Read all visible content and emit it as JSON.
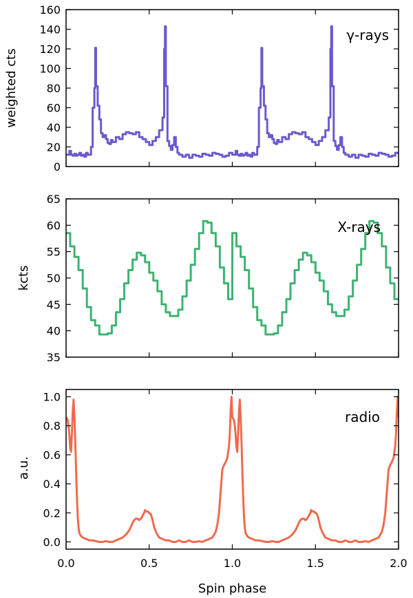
{
  "chart_data": [
    {
      "type": "line",
      "step": true,
      "panel_label": "γ-rays",
      "ylabel": "weighted cts",
      "xlabel": "",
      "ylim": [
        0,
        160
      ],
      "xlim": [
        0,
        2
      ],
      "yticks": [
        "0",
        "20",
        "40",
        "60",
        "80",
        "100",
        "120",
        "140",
        "160"
      ],
      "color": "#6a5acd",
      "series": [
        {
          "x": [
            0.0,
            0.02,
            0.03,
            0.04,
            0.05,
            0.06,
            0.07,
            0.08,
            0.09,
            0.1,
            0.11,
            0.12,
            0.13,
            0.14,
            0.15,
            0.16,
            0.17,
            0.175,
            0.18,
            0.19,
            0.2,
            0.21,
            0.22,
            0.23,
            0.24,
            0.25,
            0.26,
            0.27,
            0.28,
            0.3,
            0.32,
            0.34,
            0.36,
            0.38,
            0.4,
            0.42,
            0.44,
            0.46,
            0.48,
            0.5,
            0.52,
            0.54,
            0.56,
            0.58,
            0.59,
            0.595,
            0.6,
            0.61,
            0.62,
            0.63,
            0.64,
            0.65,
            0.66,
            0.67,
            0.68,
            0.7,
            0.72,
            0.74,
            0.76,
            0.78,
            0.8,
            0.82,
            0.84,
            0.86,
            0.88,
            0.9,
            0.92,
            0.94,
            0.96,
            0.98
          ],
          "y": [
            12,
            16,
            12,
            11,
            13,
            11,
            12,
            14,
            11,
            12,
            10,
            14,
            12,
            12,
            20,
            60,
            80,
            121,
            82,
            62,
            48,
            34,
            30,
            32,
            28,
            24,
            23,
            27,
            25,
            30,
            28,
            33,
            35,
            34,
            33,
            35,
            30,
            28,
            25,
            22,
            26,
            30,
            37,
            50,
            120,
            143,
            82,
            26,
            21,
            17,
            22,
            30,
            20,
            14,
            12,
            10,
            12,
            9,
            12,
            11,
            10,
            13,
            12,
            11,
            14,
            13,
            12,
            10,
            11,
            14
          ]
        }
      ]
    },
    {
      "type": "line",
      "step": true,
      "panel_label": "X-rays",
      "ylabel": "kcts",
      "xlabel": "",
      "ylim": [
        35,
        65
      ],
      "xlim": [
        0,
        2
      ],
      "yticks": [
        "35",
        "40",
        "45",
        "50",
        "55",
        "60",
        "65"
      ],
      "color": "#3cb371",
      "series": [
        {
          "x": [
            0.0,
            0.025,
            0.05,
            0.075,
            0.1,
            0.125,
            0.15,
            0.175,
            0.2,
            0.225,
            0.25,
            0.275,
            0.3,
            0.325,
            0.35,
            0.375,
            0.4,
            0.425,
            0.45,
            0.475,
            0.5,
            0.525,
            0.55,
            0.575,
            0.6,
            0.625,
            0.65,
            0.675,
            0.7,
            0.725,
            0.75,
            0.775,
            0.8,
            0.825,
            0.85,
            0.875,
            0.9,
            0.925,
            0.95,
            0.975
          ],
          "y": [
            58.5,
            56,
            54,
            51.5,
            48,
            44.5,
            42,
            41,
            39.3,
            39.3,
            39.5,
            41,
            43.5,
            46,
            49,
            51.5,
            53.5,
            54.8,
            54.3,
            53,
            51,
            49.5,
            47.5,
            45,
            43.5,
            42.8,
            42.8,
            44,
            46.5,
            49.5,
            52.5,
            55.5,
            58.5,
            60.8,
            60.5,
            58.5,
            56,
            52,
            49,
            46
          ]
        }
      ]
    },
    {
      "type": "line",
      "step": false,
      "panel_label": "radio",
      "ylabel": "a.u.",
      "xlabel": "Spin phase",
      "ylim": [
        -0.05,
        1.05
      ],
      "xlim": [
        0,
        2
      ],
      "yticks": [
        "0.0",
        "0.2",
        "0.4",
        "0.6",
        "0.8",
        "1.0"
      ],
      "xticks": [
        "0.0",
        "0.5",
        "1.0",
        "1.5",
        "2.0"
      ],
      "color": "#f0694d",
      "series": [
        {
          "x": [
            0.0,
            0.005,
            0.01,
            0.015,
            0.02,
            0.025,
            0.03,
            0.035,
            0.04,
            0.045,
            0.05,
            0.055,
            0.06,
            0.065,
            0.07,
            0.075,
            0.08,
            0.09,
            0.1,
            0.12,
            0.14,
            0.16,
            0.18,
            0.2,
            0.22,
            0.24,
            0.26,
            0.28,
            0.3,
            0.32,
            0.34,
            0.36,
            0.38,
            0.4,
            0.41,
            0.42,
            0.43,
            0.44,
            0.45,
            0.46,
            0.47,
            0.475,
            0.48,
            0.49,
            0.5,
            0.51,
            0.52,
            0.53,
            0.54,
            0.56,
            0.58,
            0.6,
            0.62,
            0.64,
            0.66,
            0.68,
            0.7,
            0.72,
            0.74,
            0.76,
            0.78,
            0.8,
            0.82,
            0.84,
            0.86,
            0.88,
            0.9,
            0.91,
            0.92,
            0.93,
            0.94,
            0.95,
            0.96,
            0.97,
            0.975,
            0.98,
            0.985,
            0.99,
            0.995
          ],
          "y": [
            0.86,
            0.85,
            0.84,
            0.8,
            0.74,
            0.65,
            0.62,
            0.75,
            0.9,
            0.98,
            0.86,
            0.7,
            0.5,
            0.32,
            0.18,
            0.1,
            0.06,
            0.04,
            0.03,
            0.02,
            0.01,
            0.01,
            0.005,
            0.0,
            0.0,
            0.005,
            0.0,
            0.0,
            0.01,
            0.02,
            0.03,
            0.05,
            0.08,
            0.13,
            0.15,
            0.16,
            0.16,
            0.15,
            0.16,
            0.18,
            0.2,
            0.22,
            0.21,
            0.21,
            0.2,
            0.19,
            0.15,
            0.1,
            0.07,
            0.03,
            0.02,
            0.01,
            0.01,
            0.0,
            0.0,
            0.01,
            0.0,
            0.0,
            0.01,
            0.0,
            0.0,
            0.005,
            0.0,
            0.01,
            0.02,
            0.03,
            0.07,
            0.12,
            0.2,
            0.35,
            0.5,
            0.53,
            0.55,
            0.58,
            0.62,
            0.66,
            0.75,
            0.9,
            1.0
          ]
        }
      ]
    }
  ]
}
